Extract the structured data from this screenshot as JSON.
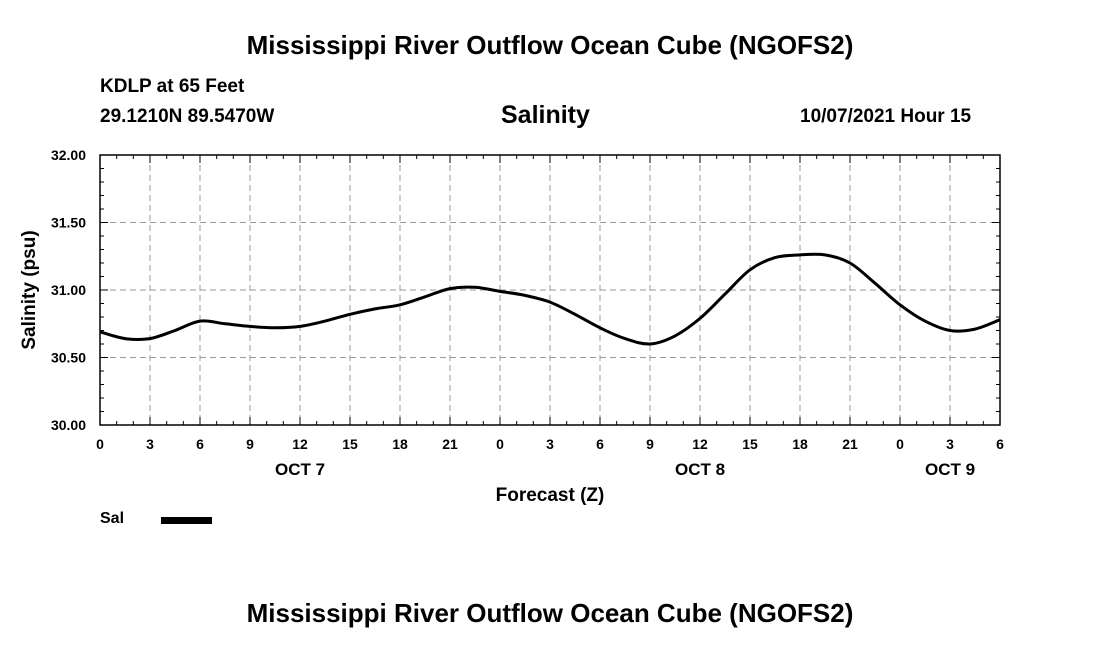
{
  "header": {
    "title": "Mississippi River Outflow Ocean Cube (NGOFS2)",
    "station": "KDLP at 65 Feet",
    "coords": "29.1210N  89.5470W",
    "variable": "Salinity",
    "timestamp": "10/07/2021 Hour 15"
  },
  "footer": {
    "title": "Mississippi River Outflow Ocean Cube (NGOFS2)"
  },
  "legend": {
    "label": "Sal"
  },
  "chart_data": {
    "type": "line",
    "title": "Salinity",
    "xlabel": "Forecast (Z)",
    "ylabel": "Salinity (psu)",
    "ylim": [
      30.0,
      32.0
    ],
    "xlim": [
      0,
      54
    ],
    "y_ticks": [
      "30.00",
      "30.50",
      "31.00",
      "31.50",
      "32.00"
    ],
    "y_tick_values": [
      30.0,
      30.5,
      31.0,
      31.5,
      32.0
    ],
    "x_ticks": [
      {
        "h": 0,
        "label": "0"
      },
      {
        "h": 3,
        "label": "3"
      },
      {
        "h": 6,
        "label": "6"
      },
      {
        "h": 9,
        "label": "9"
      },
      {
        "h": 12,
        "label": "12"
      },
      {
        "h": 15,
        "label": "15"
      },
      {
        "h": 18,
        "label": "18"
      },
      {
        "h": 21,
        "label": "21"
      },
      {
        "h": 24,
        "label": "0"
      },
      {
        "h": 27,
        "label": "3"
      },
      {
        "h": 30,
        "label": "6"
      },
      {
        "h": 33,
        "label": "9"
      },
      {
        "h": 36,
        "label": "12"
      },
      {
        "h": 39,
        "label": "15"
      },
      {
        "h": 42,
        "label": "18"
      },
      {
        "h": 45,
        "label": "21"
      },
      {
        "h": 48,
        "label": "0"
      },
      {
        "h": 51,
        "label": "3"
      },
      {
        "h": 54,
        "label": "6"
      }
    ],
    "day_labels": [
      {
        "h": 12,
        "label": "OCT 7"
      },
      {
        "h": 36,
        "label": "OCT 8"
      },
      {
        "h": 51,
        "label": "OCT 9"
      }
    ],
    "grid": true,
    "series": [
      {
        "name": "Sal",
        "color": "#000000",
        "x": [
          0,
          1.5,
          3,
          4.5,
          6,
          7.5,
          9,
          10.5,
          12,
          13.5,
          15,
          16.5,
          18,
          19.5,
          21,
          22.5,
          24,
          25.5,
          27,
          28.5,
          30,
          31.5,
          33,
          34.5,
          36,
          37.5,
          39,
          40.5,
          42,
          43.5,
          45,
          46.5,
          48,
          49.5,
          51,
          52.5,
          54
        ],
        "values": [
          30.69,
          30.64,
          30.64,
          30.7,
          30.77,
          30.75,
          30.73,
          30.72,
          30.73,
          30.77,
          30.82,
          30.86,
          30.89,
          30.95,
          31.01,
          31.02,
          30.99,
          30.96,
          30.91,
          30.82,
          30.72,
          30.64,
          30.6,
          30.66,
          30.79,
          30.97,
          31.15,
          31.24,
          31.26,
          31.26,
          31.2,
          31.05,
          30.89,
          30.77,
          30.7,
          30.71,
          30.78
        ]
      }
    ],
    "legend_position": "bottom-left"
  }
}
